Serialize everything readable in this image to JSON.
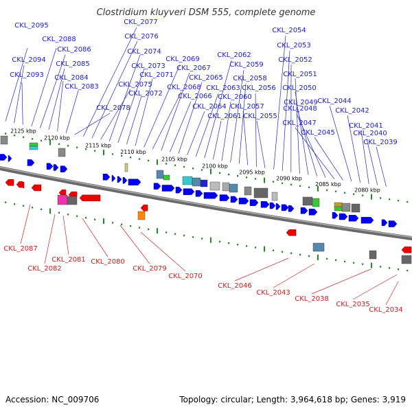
{
  "title": "Clostridium kluyveri DSM 555, complete genome",
  "footer": {
    "accession": "Accession: NC_009706",
    "summary": "Topology: circular; Length: 3,964,618 bp; Genes: 3,919"
  },
  "colors": {
    "forward": "#0000ee",
    "reverse": "#ee0000",
    "backbone": "#888888",
    "tick": "#228822"
  },
  "kbp_labels": [
    "2125 kbp",
    "2120 kbp",
    "2115 kbp",
    "2110 kbp",
    "2105 kbp",
    "2100 kbp",
    "2095 kbp",
    "2090 kbp",
    "2085 kbp",
    "2080 kbp"
  ],
  "forward_genes": [
    "CKL_2095",
    "CKL_2094",
    "CKL_2093",
    "CKL_2088",
    "CKL_2086",
    "CKL_2085",
    "CKL_2084",
    "CKL_2083",
    "CKL_2078",
    "CKL_2077",
    "CKL_2076",
    "CKL_2075",
    "CKL_2074",
    "CKL_2073",
    "CKL_2072",
    "CKL_2071",
    "CKL_2069",
    "CKL_2068",
    "CKL_2067",
    "CKL_2066",
    "CKL_2065",
    "CKL_2064",
    "CKL_2063",
    "CKL_2062",
    "CKL_2061",
    "CKL_2060",
    "CKL_2059",
    "CKL_2058",
    "CKL_2057",
    "CKL_2056",
    "CKL_2055",
    "CKL_2054",
    "CKL_2053",
    "CKL_2052",
    "CKL_2051",
    "CKL_2050",
    "CKL_2049",
    "CKL_2048",
    "CKL_2047",
    "CKL_2045",
    "CKL_2044",
    "CKL_2042",
    "CKL_2041",
    "CKL_2040",
    "CKL_2039"
  ],
  "reverse_genes": [
    "CKL_2087",
    "CKL_2082",
    "CKL_2081",
    "CKL_2080",
    "CKL_2079",
    "CKL_2070",
    "CKL_2046",
    "CKL_2043",
    "CKL_2038",
    "CKL_2035",
    "CKL_2034"
  ]
}
